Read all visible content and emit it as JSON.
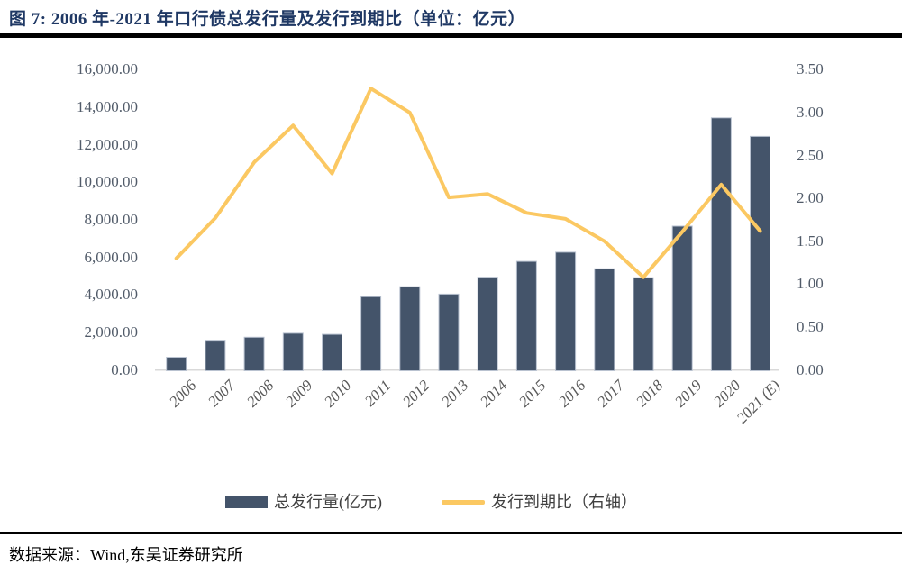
{
  "title": {
    "text": "图 7:  2006 年-2021 年口行债总发行量及发行到期比（单位：亿元）"
  },
  "footer": {
    "text": "数据来源：Wind,东吴证券研究所"
  },
  "legend": {
    "bar_label": "总发行量(亿元)",
    "line_label": "发行到期比（右轴）"
  },
  "colors": {
    "bar": "#44546A",
    "bar_border": "#b9c2d0",
    "line": "#FBC862",
    "title": "#1F3864",
    "axis_text": "#515b69",
    "x_axis_text": "#595959",
    "baseline": "#D9D9D9",
    "separator": "#000000"
  },
  "chart_data": {
    "type": "combo-bar-line",
    "title": "2006 年-2021 年口行债总发行量及发行到期比（单位：亿元）",
    "categories": [
      "2006",
      "2007",
      "2008",
      "2009",
      "2010",
      "2011",
      "2012",
      "2013",
      "2014",
      "2015",
      "2016",
      "2017",
      "2018",
      "2019",
      "2020",
      "2021 (E)"
    ],
    "series": [
      {
        "name": "总发行量(亿元)",
        "type": "bar",
        "axis": "left",
        "values": [
          670,
          1580,
          1740,
          1950,
          1890,
          3900,
          4430,
          4040,
          4940,
          5780,
          6270,
          5390,
          4910,
          7660,
          13430,
          12440
        ]
      },
      {
        "name": "发行到期比（右轴）",
        "type": "line",
        "axis": "right",
        "values": [
          1.3,
          1.77,
          2.42,
          2.85,
          2.29,
          3.28,
          3.0,
          2.01,
          2.05,
          1.83,
          1.76,
          1.5,
          1.08,
          1.61,
          2.16,
          1.62
        ]
      }
    ],
    "left_axis": {
      "min": 0,
      "max": 16000,
      "step": 2000,
      "format": "thousands-2dp"
    },
    "right_axis": {
      "min": 0,
      "max": 3.5,
      "step": 0.5,
      "format": "2dp"
    },
    "grid": false,
    "legend_position": "bottom"
  }
}
